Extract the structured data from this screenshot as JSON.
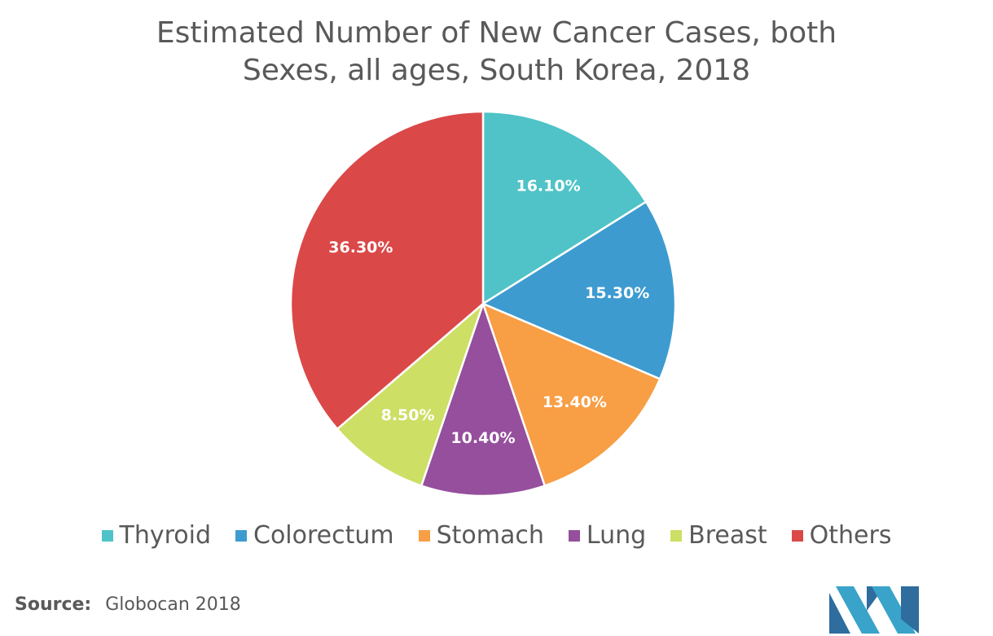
{
  "title_line1": "Estimated Number of New Cancer Cases, both",
  "title_line2": "Sexes, all ages, South Korea, 2018",
  "source_label": "Source:",
  "source_value": "Globocan 2018",
  "logo_icon": "mordor-logo-icon",
  "chart_data": {
    "type": "pie",
    "title": "Estimated Number of New Cancer Cases, both Sexes, all ages, South Korea, 2018",
    "legend_position": "bottom",
    "categories": [
      "Thyroid",
      "Colorectum",
      "Stomach",
      "Lung",
      "Breast",
      "Others"
    ],
    "values": [
      16.1,
      15.3,
      13.4,
      10.4,
      8.5,
      36.3
    ],
    "labels": [
      "16.10%",
      "15.30%",
      "13.40%",
      "10.40%",
      "8.50%",
      "36.30%"
    ],
    "colors": [
      "#4fc3c7",
      "#3d9bd0",
      "#f89e45",
      "#954f9c",
      "#cddf64",
      "#db4848"
    ]
  }
}
